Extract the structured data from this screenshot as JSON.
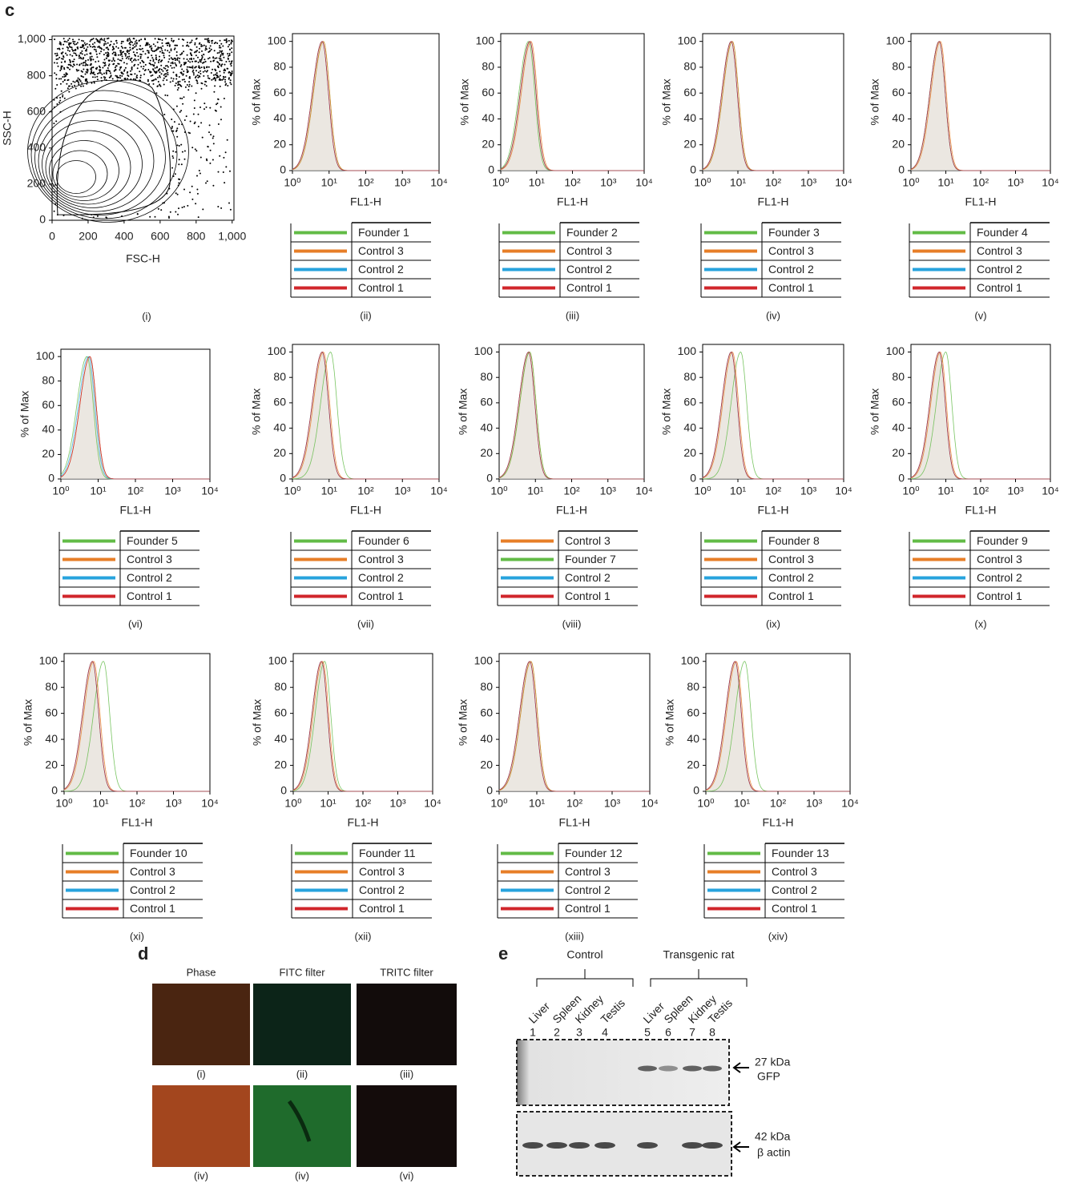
{
  "panel_c": {
    "label": "c",
    "scatter": {
      "type": "contour-scatter",
      "xlabel": "FSC-H",
      "ylabel": "SSC-H",
      "xlim": [
        0,
        1010
      ],
      "ylim": [
        0,
        1020
      ],
      "xticks": [
        0,
        200,
        400,
        600,
        800,
        {
          "value": 1000,
          "label": "1,000"
        }
      ],
      "yticks": [
        0,
        200,
        400,
        600,
        800,
        {
          "value": 1000,
          "label": "1,000"
        }
      ],
      "caption": "(i)"
    },
    "histogram_axes": {
      "type": "histogram",
      "xlabel": "FL1-H",
      "ylabel": "% of Max",
      "xscale": "log",
      "xlim": [
        1,
        10000
      ],
      "ylim": [
        0,
        106
      ],
      "xticks": [
        {
          "value": 1,
          "label": "10⁰"
        },
        {
          "value": 10,
          "label": "10¹"
        },
        {
          "value": 100,
          "label": "10²"
        },
        {
          "value": 1000,
          "label": "10³"
        },
        {
          "value": 10000,
          "label": "10⁴"
        }
      ],
      "yticks": [
        0,
        20,
        40,
        60,
        80,
        100
      ]
    },
    "histograms": [
      {
        "caption": "(ii)",
        "series": [
          {
            "name": "Founder 1",
            "color": "#62bb46",
            "peak": 7
          },
          {
            "name": "Control 3",
            "color": "#e77e27",
            "peak": 7
          },
          {
            "name": "Control 2",
            "color": "#27a3dd",
            "peak": 6.5
          },
          {
            "name": "Control 1",
            "color": "#d1262b",
            "peak": 6.5
          }
        ]
      },
      {
        "caption": "(iii)",
        "series": [
          {
            "name": "Founder 2",
            "color": "#62bb46",
            "peak": 6
          },
          {
            "name": "Control 3",
            "color": "#e77e27",
            "peak": 7
          },
          {
            "name": "Control 2",
            "color": "#27a3dd",
            "peak": 6.5
          },
          {
            "name": "Control 1",
            "color": "#d1262b",
            "peak": 6.5
          }
        ]
      },
      {
        "caption": "(iv)",
        "series": [
          {
            "name": "Founder 3",
            "color": "#62bb46",
            "peak": 7
          },
          {
            "name": "Control 3",
            "color": "#e77e27",
            "peak": 7
          },
          {
            "name": "Control 2",
            "color": "#27a3dd",
            "peak": 6.5
          },
          {
            "name": "Control 1",
            "color": "#d1262b",
            "peak": 6.5
          }
        ]
      },
      {
        "caption": "(v)",
        "series": [
          {
            "name": "Founder 4",
            "color": "#62bb46",
            "peak": 6.5
          },
          {
            "name": "Control 3",
            "color": "#e77e27",
            "peak": 7
          },
          {
            "name": "Control 2",
            "color": "#27a3dd",
            "peak": 6.5
          },
          {
            "name": "Control 1",
            "color": "#d1262b",
            "peak": 6.5
          }
        ]
      },
      {
        "caption": "(vi)",
        "series": [
          {
            "name": "Founder 5",
            "color": "#62bb46",
            "peak": 5
          },
          {
            "name": "Control 3",
            "color": "#e77e27",
            "peak": 6
          },
          {
            "name": "Control 2",
            "color": "#27a3dd",
            "peak": 5.5
          },
          {
            "name": "Control 1",
            "color": "#d1262b",
            "peak": 6
          }
        ]
      },
      {
        "caption": "(vii)",
        "series": [
          {
            "name": "Founder 6",
            "color": "#62bb46",
            "peak": 11
          },
          {
            "name": "Control 3",
            "color": "#e77e27",
            "peak": 7
          },
          {
            "name": "Control 2",
            "color": "#27a3dd",
            "peak": 6.5
          },
          {
            "name": "Control 1",
            "color": "#d1262b",
            "peak": 6.5
          }
        ]
      },
      {
        "caption": "(viii)",
        "series": [
          {
            "name": "Control 3",
            "color": "#e77e27",
            "peak": 7
          },
          {
            "name": "Founder 7",
            "color": "#62bb46",
            "peak": 7
          },
          {
            "name": "Control 2",
            "color": "#27a3dd",
            "peak": 6.5
          },
          {
            "name": "Control 1",
            "color": "#d1262b",
            "peak": 6.5
          }
        ]
      },
      {
        "caption": "(ix)",
        "series": [
          {
            "name": "Founder 8",
            "color": "#62bb46",
            "peak": 12
          },
          {
            "name": "Control 3",
            "color": "#e77e27",
            "peak": 7
          },
          {
            "name": "Control 2",
            "color": "#27a3dd",
            "peak": 6.5
          },
          {
            "name": "Control 1",
            "color": "#d1262b",
            "peak": 6.5
          }
        ]
      },
      {
        "caption": "(x)",
        "series": [
          {
            "name": "Founder 9",
            "color": "#62bb46",
            "peak": 10
          },
          {
            "name": "Control 3",
            "color": "#e77e27",
            "peak": 7
          },
          {
            "name": "Control 2",
            "color": "#27a3dd",
            "peak": 6.5
          },
          {
            "name": "Control 1",
            "color": "#d1262b",
            "peak": 6.5
          }
        ]
      },
      {
        "caption": "(xi)",
        "series": [
          {
            "name": "Founder 10",
            "color": "#62bb46",
            "peak": 12
          },
          {
            "name": "Control 3",
            "color": "#e77e27",
            "peak": 6.5
          },
          {
            "name": "Control 2",
            "color": "#27a3dd",
            "peak": 6
          },
          {
            "name": "Control 1",
            "color": "#d1262b",
            "peak": 6
          }
        ]
      },
      {
        "caption": "(xii)",
        "series": [
          {
            "name": "Founder 11",
            "color": "#62bb46",
            "peak": 8
          },
          {
            "name": "Control 3",
            "color": "#e77e27",
            "peak": 7
          },
          {
            "name": "Control 2",
            "color": "#27a3dd",
            "peak": 6.5
          },
          {
            "name": "Control 1",
            "color": "#d1262b",
            "peak": 6.5
          }
        ]
      },
      {
        "caption": "(xiii)",
        "series": [
          {
            "name": "Founder 12",
            "color": "#62bb46",
            "peak": 7
          },
          {
            "name": "Control 3",
            "color": "#e77e27",
            "peak": 7
          },
          {
            "name": "Control 2",
            "color": "#27a3dd",
            "peak": 6.5
          },
          {
            "name": "Control 1",
            "color": "#d1262b",
            "peak": 6.5
          }
        ]
      },
      {
        "caption": "(xiv)",
        "series": [
          {
            "name": "Founder 13",
            "color": "#62bb46",
            "peak": 12
          },
          {
            "name": "Control 3",
            "color": "#e77e27",
            "peak": 7
          },
          {
            "name": "Control 2",
            "color": "#27a3dd",
            "peak": 6.5
          },
          {
            "name": "Control 1",
            "color": "#d1262b",
            "peak": 6.5
          }
        ]
      }
    ]
  },
  "panel_d": {
    "label": "d",
    "columns": [
      "Phase",
      "FITC filter",
      "TRITC filter"
    ],
    "captions": [
      "(i)",
      "(ii)",
      "(iii)",
      "(iv)",
      "(iv)",
      "(vi)"
    ]
  },
  "panel_e": {
    "label": "e",
    "groups": [
      "Control",
      "Transgenic rat"
    ],
    "lanes": [
      "Liver",
      "Spleen",
      "Kidney",
      "Testis",
      "Liver",
      "Spleen",
      "Kidney",
      "Testis"
    ],
    "lane_numbers": [
      1,
      2,
      3,
      4,
      5,
      6,
      7,
      8
    ],
    "bands": [
      {
        "size": "27 kDa",
        "protein": "GFP"
      },
      {
        "size": "42 kDa",
        "protein": "β actin"
      }
    ]
  }
}
